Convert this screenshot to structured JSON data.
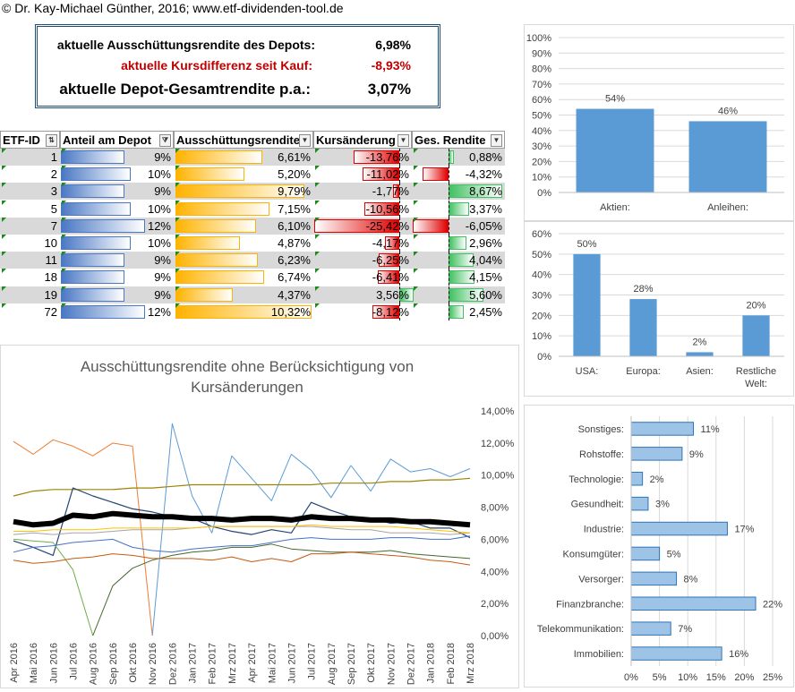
{
  "credit": "© Dr. Kay-Michael Günther, 2016; www.etf-dividenden-tool.de",
  "summary": {
    "payout_label": "aktuelle Ausschüttungsrendite des Depots:",
    "payout_value": "6,98%",
    "pricediff_label": "aktuelle Kursdifferenz seit Kauf:",
    "pricediff_value": "-8,93%",
    "total_label": "aktuelle Depot-Gesamtrendite p.a.:",
    "total_value": "3,07%",
    "negative_color": "#c00000"
  },
  "table": {
    "headers": [
      "ETF-ID",
      "Anteil am Depot",
      "Ausschüttungsrendite",
      "Kursänderung",
      "Ges. Rendite"
    ],
    "rows": [
      {
        "id": "1",
        "share": "9%",
        "share_v": 9,
        "payout": "6,61%",
        "payout_v": 6.61,
        "change": "-13,76%",
        "change_v": -13.76,
        "total": "0,88%",
        "total_v": 0.88
      },
      {
        "id": "2",
        "share": "10%",
        "share_v": 10,
        "payout": "5,20%",
        "payout_v": 5.2,
        "change": "-11,02%",
        "change_v": -11.02,
        "total": "-4,32%",
        "total_v": -4.32
      },
      {
        "id": "3",
        "share": "9%",
        "share_v": 9,
        "payout": "9,79%",
        "payout_v": 9.79,
        "change": "-1,77%",
        "change_v": -1.77,
        "total": "8,67%",
        "total_v": 8.67
      },
      {
        "id": "5",
        "share": "10%",
        "share_v": 10,
        "payout": "7,15%",
        "payout_v": 7.15,
        "change": "-10,56%",
        "change_v": -10.56,
        "total": "3,37%",
        "total_v": 3.37
      },
      {
        "id": "7",
        "share": "12%",
        "share_v": 12,
        "payout": "6,10%",
        "payout_v": 6.1,
        "change": "-25,42%",
        "change_v": -25.42,
        "total": "-6,05%",
        "total_v": -6.05
      },
      {
        "id": "10",
        "share": "10%",
        "share_v": 10,
        "payout": "4,87%",
        "payout_v": 4.87,
        "change": "-4,17%",
        "change_v": -4.17,
        "total": "2,96%",
        "total_v": 2.96
      },
      {
        "id": "11",
        "share": "9%",
        "share_v": 9,
        "payout": "6,23%",
        "payout_v": 6.23,
        "change": "-6,25%",
        "change_v": -6.25,
        "total": "4,04%",
        "total_v": 4.04
      },
      {
        "id": "18",
        "share": "9%",
        "share_v": 9,
        "payout": "6,74%",
        "payout_v": 6.74,
        "change": "-6,41%",
        "change_v": -6.41,
        "total": "4,15%",
        "total_v": 4.15
      },
      {
        "id": "19",
        "share": "9%",
        "share_v": 9,
        "payout": "4,37%",
        "payout_v": 4.37,
        "change": "3,56%",
        "change_v": 3.56,
        "total": "5,60%",
        "total_v": 5.6
      },
      {
        "id": "72",
        "share": "12%",
        "share_v": 12,
        "payout": "10,32%",
        "payout_v": 10.32,
        "change": "-8,12%",
        "change_v": -8.12,
        "total": "2,45%",
        "total_v": 2.45
      }
    ]
  },
  "chart_data": [
    {
      "type": "bar",
      "categories": [
        "Aktien:",
        "Anleihen:"
      ],
      "values": [
        54,
        46
      ],
      "data_labels": [
        "54%",
        "46%"
      ],
      "ylim": [
        0,
        100
      ],
      "yticks": [
        "0%",
        "10%",
        "20%",
        "30%",
        "40%",
        "50%",
        "60%",
        "70%",
        "80%",
        "90%",
        "100%"
      ],
      "color": "#5b9bd5"
    },
    {
      "type": "bar",
      "categories": [
        "USA:",
        "Europa:",
        "Asien:",
        "Restliche Welt:"
      ],
      "values": [
        50,
        28,
        2,
        20
      ],
      "data_labels": [
        "50%",
        "28%",
        "2%",
        "20%"
      ],
      "ylim": [
        0,
        60
      ],
      "yticks": [
        "0%",
        "10%",
        "20%",
        "30%",
        "40%",
        "50%",
        "60%"
      ],
      "color": "#5b9bd5"
    },
    {
      "type": "bar",
      "orientation": "horizontal",
      "categories": [
        "Sonstiges:",
        "Rohstoffe:",
        "Technologie:",
        "Gesundheit:",
        "Industrie:",
        "Konsumgüter:",
        "Versorger:",
        "Finanzbranche:",
        "Telekommunikation:",
        "Immobilien:"
      ],
      "values": [
        11,
        9,
        2,
        3,
        17,
        5,
        8,
        22,
        7,
        16
      ],
      "data_labels": [
        "11%",
        "9%",
        "2%",
        "3%",
        "17%",
        "5%",
        "8%",
        "22%",
        "7%",
        "16%"
      ],
      "xlim": [
        0,
        25
      ],
      "xticks": [
        "0%",
        "5%",
        "10%",
        "15%",
        "20%",
        "25%"
      ],
      "color": "#9dc3e6"
    },
    {
      "type": "line",
      "title": "Ausschüttungsrendite ohne Berücksichtigung von Kursänderungen",
      "x": [
        "Apr 2016",
        "Mai 2016",
        "Jun 2016",
        "Jul 2016",
        "Aug 2016",
        "Sep 2016",
        "Okt 2016",
        "Nov 2016",
        "Dez 2016",
        "Jan 2017",
        "Feb 2017",
        "Mrz 2017",
        "Apr 2017",
        "Mai 2017",
        "Jun 2017",
        "Jul 2017",
        "Aug 2017",
        "Sep 2017",
        "Okt 2017",
        "Nov 2017",
        "Dez 2017",
        "Jan 2018",
        "Feb 2018",
        "Mrz 2018"
      ],
      "ylim": [
        0,
        14
      ],
      "yticks": [
        "0,00%",
        "2,00%",
        "4,00%",
        "6,00%",
        "8,00%",
        "10,00%",
        "12,00%",
        "14,00%"
      ],
      "series": [
        {
          "color": "#ed7d31",
          "width": 1,
          "values": [
            12.1,
            11.3,
            12.2,
            11.8,
            11.2,
            12.0,
            11.8,
            0.0,
            null,
            null,
            null,
            null,
            null,
            null,
            null,
            null,
            null,
            null,
            null,
            null,
            null,
            null,
            null,
            null
          ]
        },
        {
          "color": "#5b9bd5",
          "width": 1,
          "values": [
            null,
            null,
            null,
            null,
            null,
            null,
            null,
            0.0,
            13.2,
            8.7,
            6.4,
            11.2,
            9.8,
            8.4,
            11.3,
            10.3,
            8.6,
            10.6,
            9.0,
            11.0,
            10.2,
            10.4,
            9.9,
            10.4
          ]
        },
        {
          "color": "#9e8300",
          "width": 1.2,
          "values": [
            8.7,
            9.0,
            9.1,
            9.1,
            9.1,
            9.1,
            9.2,
            9.2,
            9.3,
            9.4,
            9.4,
            9.4,
            9.4,
            9.4,
            9.4,
            9.4,
            9.5,
            9.5,
            9.5,
            9.6,
            9.6,
            9.7,
            9.7,
            9.8
          ]
        },
        {
          "color": "#264478",
          "width": 1.2,
          "values": [
            5.9,
            5.5,
            5.0,
            9.2,
            8.7,
            8.3,
            7.9,
            7.7,
            7.4,
            7.3,
            6.8,
            6.5,
            6.3,
            6.6,
            6.4,
            8.3,
            7.8,
            7.4,
            7.3,
            7.0,
            7.1,
            6.7,
            6.7,
            6.1
          ]
        },
        {
          "color": "#70ad47",
          "width": 1,
          "values": [
            6.0,
            5.9,
            5.8,
            4.1,
            0.0,
            null,
            null,
            null,
            null,
            null,
            null,
            null,
            null,
            null,
            null,
            null,
            null,
            null,
            null,
            null,
            null,
            null,
            null,
            null
          ]
        },
        {
          "color": "#43682b",
          "width": 1,
          "values": [
            null,
            null,
            null,
            null,
            0.0,
            3.1,
            4.2,
            4.7,
            5.0,
            5.2,
            5.3,
            5.5,
            5.5,
            5.7,
            5.4,
            5.3,
            5.2,
            5.2,
            5.2,
            5.3,
            5.1,
            5.0,
            4.9,
            4.8
          ]
        },
        {
          "color": "#c55a11",
          "width": 1,
          "values": [
            4.7,
            4.5,
            4.6,
            4.8,
            4.9,
            5.1,
            5.0,
            4.8,
            4.8,
            4.8,
            4.7,
            4.9,
            4.6,
            4.8,
            4.6,
            5.1,
            5.1,
            5.2,
            5.1,
            5.0,
            4.9,
            4.7,
            4.6,
            4.4
          ]
        },
        {
          "color": "#a5a5a5",
          "width": 1,
          "values": [
            6.3,
            6.4,
            6.3,
            6.4,
            6.4,
            6.5,
            6.6,
            6.6,
            6.6,
            6.7,
            6.8,
            6.8,
            6.8,
            6.8,
            6.8,
            6.8,
            6.7,
            6.6,
            6.6,
            6.4,
            6.4,
            6.4,
            6.3,
            6.4
          ]
        },
        {
          "color": "#ffc000",
          "width": 1,
          "values": [
            6.5,
            6.5,
            6.6,
            6.6,
            6.6,
            6.7,
            6.7,
            6.7,
            6.7,
            6.7,
            6.8,
            6.8,
            6.8,
            6.8,
            6.8,
            6.9,
            6.8,
            6.8,
            6.8,
            6.8,
            6.7,
            6.6,
            6.5,
            6.4
          ]
        },
        {
          "color": "#4472c4",
          "width": 1,
          "values": [
            5.2,
            5.5,
            5.6,
            5.8,
            5.9,
            6.0,
            5.5,
            5.3,
            5.2,
            5.4,
            5.5,
            5.6,
            5.6,
            5.8,
            6.0,
            6.1,
            6.0,
            6.0,
            6.0,
            6.1,
            6.1,
            6.0,
            6.0,
            6.2
          ]
        },
        {
          "color": "#000000",
          "width": 6,
          "values": [
            7.1,
            6.9,
            7.0,
            7.5,
            7.4,
            7.6,
            7.5,
            7.4,
            7.4,
            7.3,
            7.3,
            7.2,
            7.3,
            7.3,
            7.2,
            7.4,
            7.3,
            7.3,
            7.2,
            7.2,
            7.1,
            7.1,
            7.0,
            6.9
          ]
        }
      ]
    }
  ]
}
